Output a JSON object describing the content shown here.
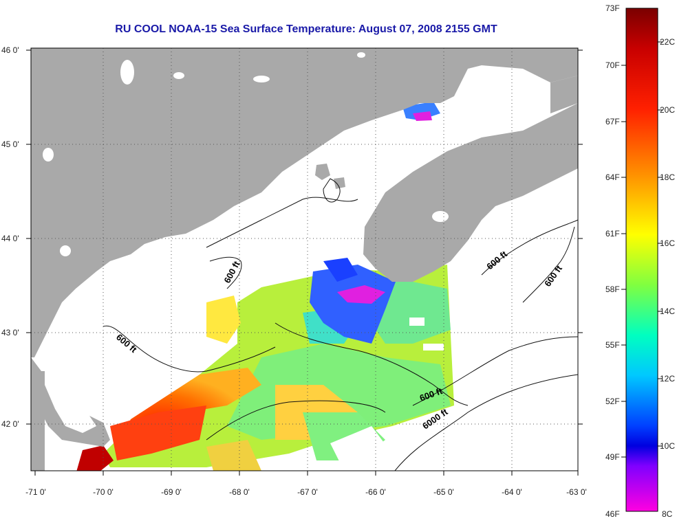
{
  "title": "RU COOL  NOAA-15  Sea Surface Temperature:  August 07, 2008 2155 GMT",
  "map": {
    "lon_labels": [
      "-71 0'",
      "-70 0'",
      "-69 0'",
      "-68 0'",
      "-67 0'",
      "-66 0'",
      "-65 0'",
      "-64 0'",
      "-63 0'"
    ],
    "lat_labels": [
      "46 0'",
      "45 0'",
      "44 0'",
      "43 0'",
      "42 0'"
    ],
    "contour_labels": [
      {
        "text": "600 ft"
      },
      {
        "text": "600 ft"
      },
      {
        "text": "600 ft"
      },
      {
        "text": "600 ft"
      },
      {
        "text": "600 ft"
      },
      {
        "text": "6000 ft"
      }
    ],
    "land_color": "#a9a9a9",
    "water_color": "#ffffff"
  },
  "colorbar": {
    "fahrenheit_labels": [
      "73F",
      "70F",
      "67F",
      "64F",
      "61F",
      "58F",
      "55F",
      "52F",
      "49F",
      "46F"
    ],
    "celsius_labels": [
      "22C",
      "20C",
      "18C",
      "16C",
      "14C",
      "12C",
      "10C",
      "8C"
    ],
    "colors": [
      "#8b0000",
      "#ff0000",
      "#ff8c00",
      "#ffff00",
      "#7fff00",
      "#00ffff",
      "#0000ff",
      "#ff00ff"
    ]
  }
}
